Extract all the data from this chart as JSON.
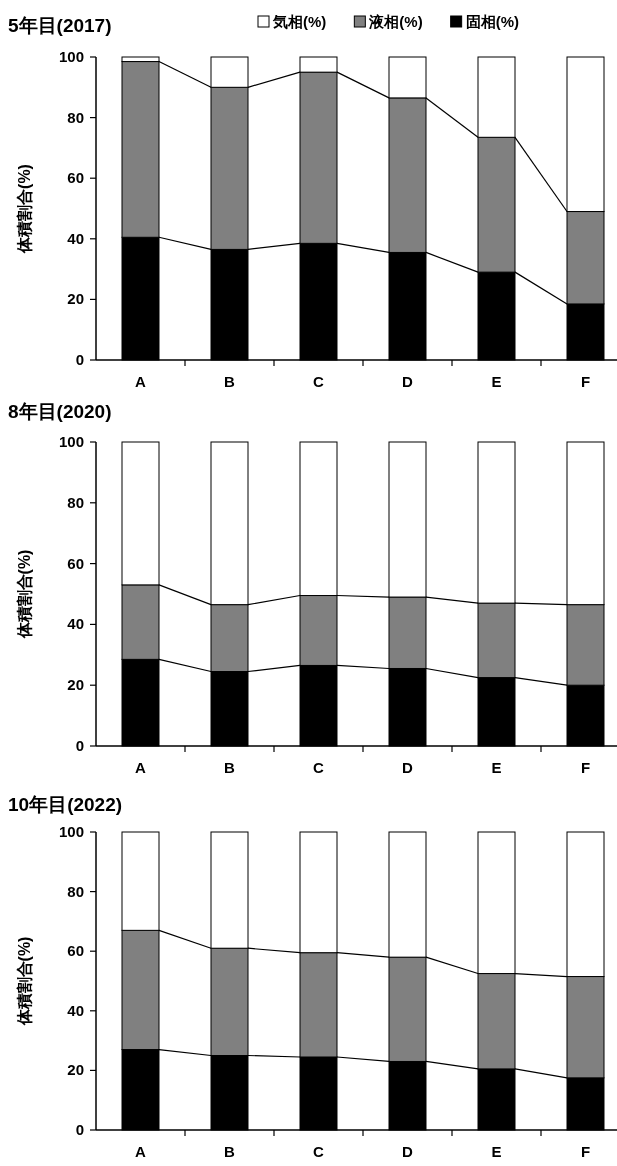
{
  "chart_data": [
    {
      "type": "bar",
      "title": "5年目(2017)",
      "ylabel": "体積割合(%)",
      "categories": [
        "A",
        "B",
        "C",
        "D",
        "E",
        "F"
      ],
      "stacked": true,
      "ylim": [
        0,
        100
      ],
      "yticks": [
        0,
        20,
        40,
        60,
        80,
        100
      ],
      "legend": "top",
      "series": [
        {
          "name": "固相(%)",
          "color": "#000000",
          "values": [
            40.5,
            36.5,
            38.5,
            35.5,
            29,
            18.5
          ]
        },
        {
          "name": "液相(%)",
          "color": "#808080",
          "values": [
            58,
            53.5,
            56.5,
            51,
            44.5,
            30.5
          ]
        },
        {
          "name": "気相(%)",
          "color": "#ffffff",
          "values": [
            1.5,
            10,
            5,
            13.5,
            26.5,
            51
          ]
        }
      ]
    },
    {
      "type": "bar",
      "title": "8年目(2020)",
      "ylabel": "体積割合(%)",
      "categories": [
        "A",
        "B",
        "C",
        "D",
        "E",
        "F"
      ],
      "stacked": true,
      "ylim": [
        0,
        100
      ],
      "yticks": [
        0,
        20,
        40,
        60,
        80,
        100
      ],
      "series": [
        {
          "color": "#000000",
          "values": [
            28.5,
            24.5,
            26.5,
            25.5,
            22.5,
            20
          ]
        },
        {
          "color": "#808080",
          "values": [
            24.5,
            22,
            23,
            23.5,
            24.5,
            26.5
          ]
        },
        {
          "color": "#ffffff",
          "values": [
            47,
            53.5,
            50.5,
            51,
            53,
            53.5
          ]
        }
      ]
    },
    {
      "type": "bar",
      "title": "10年目(2022)",
      "ylabel": "体積割合(%)",
      "categories": [
        "A",
        "B",
        "C",
        "D",
        "E",
        "F"
      ],
      "stacked": true,
      "ylim": [
        0,
        100
      ],
      "yticks": [
        0,
        20,
        40,
        60,
        80,
        100
      ],
      "series": [
        {
          "color": "#000000",
          "values": [
            27,
            25,
            24.5,
            23,
            20.5,
            17.5
          ]
        },
        {
          "color": "#808080",
          "values": [
            40,
            36,
            35,
            35,
            32,
            34
          ]
        },
        {
          "color": "#ffffff",
          "values": [
            33,
            39,
            40.5,
            42,
            47.5,
            48.5
          ]
        }
      ]
    }
  ]
}
